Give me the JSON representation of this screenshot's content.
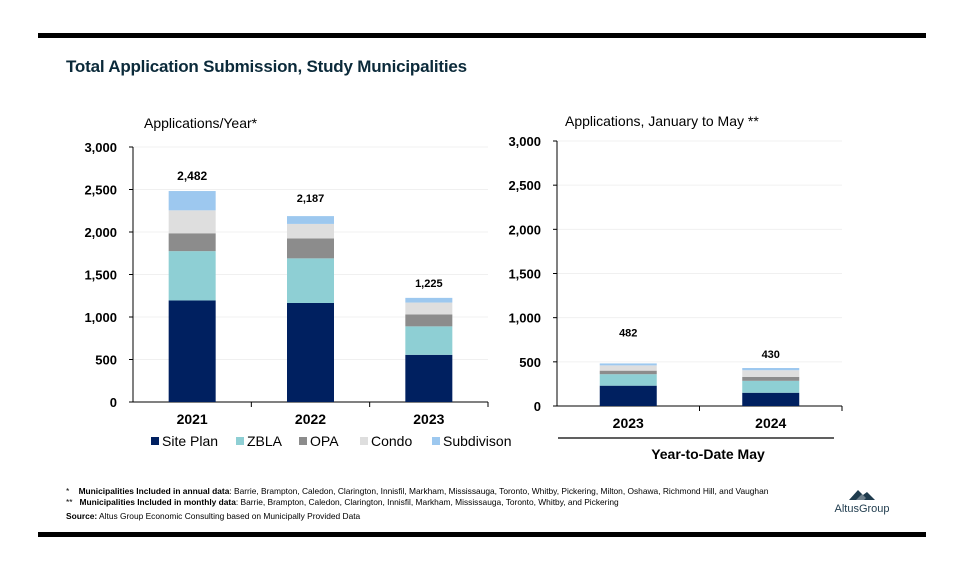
{
  "title": "Total Application Submission, Study Municipalities",
  "colors": {
    "site_plan": "#002060",
    "zbla": "#8ecfd4",
    "opa": "#8c8c8c",
    "condo": "#dedede",
    "subdivision": "#9dc8ef",
    "rule": "#000000"
  },
  "chart_data": [
    {
      "type": "bar",
      "stacked": true,
      "title": "Applications/Year*",
      "categories": [
        "2021",
        "2022",
        "2023"
      ],
      "series": [
        {
          "name": "Site Plan",
          "values": [
            1195,
            1165,
            555
          ]
        },
        {
          "name": "ZBLA",
          "values": [
            580,
            525,
            335
          ]
        },
        {
          "name": "OPA",
          "values": [
            210,
            235,
            140
          ]
        },
        {
          "name": "Condo",
          "values": [
            270,
            170,
            140
          ]
        },
        {
          "name": "Subdivison",
          "values": [
            227,
            92,
            55
          ]
        }
      ],
      "totals": [
        "2,482",
        "2,187",
        "1,225"
      ],
      "ylim": [
        0,
        3000
      ],
      "yticks": [
        "0",
        "500",
        "1,000",
        "1,500",
        "2,000",
        "2,500",
        "3,000"
      ],
      "xlabel": "",
      "legend": "bottom"
    },
    {
      "type": "bar",
      "stacked": true,
      "title": "Applications, January to May **",
      "categories": [
        "2023",
        "2024"
      ],
      "series": [
        {
          "name": "Site Plan",
          "values": [
            230,
            150
          ]
        },
        {
          "name": "ZBLA",
          "values": [
            130,
            135
          ]
        },
        {
          "name": "OPA",
          "values": [
            40,
            45
          ]
        },
        {
          "name": "Condo",
          "values": [
            60,
            75
          ]
        },
        {
          "name": "Subdivison",
          "values": [
            22,
            25
          ]
        }
      ],
      "totals": [
        "482",
        "430"
      ],
      "ylim": [
        0,
        3000
      ],
      "yticks": [
        "0",
        "500",
        "1,000",
        "1,500",
        "2,000",
        "2,500",
        "3,000"
      ],
      "xlabel": "Year-to-Date May"
    }
  ],
  "footnotes": {
    "annual_marker": "*",
    "annual_label": "Municipalities Included in annual data",
    "annual_text": ": Barrie, Brampton, Caledon, Clarington, Innisfil, Markham, Mississauga, Toronto, Whitby, Pickering, Milton, Oshawa, Richmond Hill, and Vaughan",
    "monthly_marker": "**",
    "monthly_label": "Municipalities Included in monthly data",
    "monthly_text": ": Barrie, Brampton, Caledon, Clarington, Innisfil, Markham, Mississauga, Toronto, Whitby, and Pickering",
    "source_label": "Source:",
    "source_text": " Altus Group Economic Consulting based on Municipally Provided Data"
  },
  "logo": {
    "text": "AltusGroup",
    "icon": "mountain-logo-icon"
  }
}
